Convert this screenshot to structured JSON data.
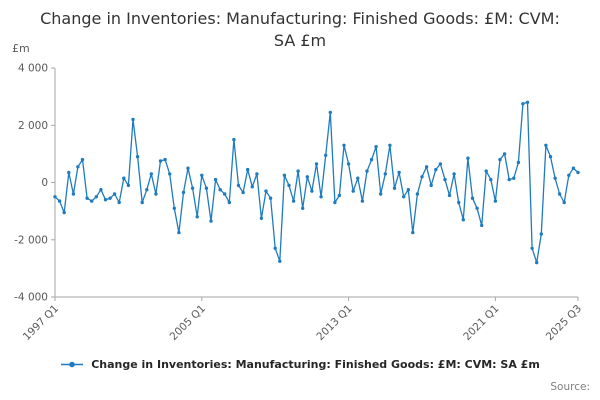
{
  "chart_data": {
    "type": "line",
    "title": "Change in Inventories: Manufacturing: Finished Goods: £M: CVM: SA £m",
    "ylabel": "£m",
    "xlabel": "",
    "ylim": [
      -4000,
      4000
    ],
    "grid": false,
    "legend_position": "bottom",
    "line_color": "#1f7bbf",
    "x_start": "1997 Q1",
    "x_end": "2025 Q3",
    "frequency": "quarterly",
    "yticks": [
      {
        "value": 4000,
        "label": "4 000"
      },
      {
        "value": 2000,
        "label": "2 000"
      },
      {
        "value": 0,
        "label": "0"
      },
      {
        "value": -2000,
        "label": "-2 000"
      },
      {
        "value": -4000,
        "label": "-4 000"
      }
    ],
    "xticks": [
      {
        "index": 0,
        "label": "1997 Q1"
      },
      {
        "index": 32,
        "label": "2005 Q1"
      },
      {
        "index": 64,
        "label": "2013 Q1"
      },
      {
        "index": 96,
        "label": "2021 Q1"
      },
      {
        "index": 114,
        "label": "2025 Q3"
      }
    ],
    "series": [
      {
        "name": "Change in Inventories: Manufacturing: Finished Goods: £M: CVM: SA £m",
        "values": [
          -500,
          -650,
          -1050,
          350,
          -400,
          550,
          800,
          -550,
          -650,
          -500,
          -250,
          -600,
          -550,
          -400,
          -700,
          150,
          -100,
          2200,
          900,
          -700,
          -250,
          300,
          -400,
          750,
          800,
          300,
          -900,
          -1750,
          -350,
          500,
          -200,
          -1200,
          250,
          -200,
          -1350,
          100,
          -250,
          -400,
          -700,
          1500,
          -100,
          -350,
          450,
          -150,
          300,
          -1250,
          -300,
          -550,
          -2300,
          -2750,
          250,
          -100,
          -650,
          400,
          -900,
          200,
          -300,
          650,
          -500,
          950,
          2450,
          -700,
          -450,
          1300,
          650,
          -300,
          150,
          -650,
          400,
          800,
          1250,
          -400,
          300,
          1300,
          -200,
          350,
          -500,
          -250,
          -1750,
          -400,
          200,
          550,
          -100,
          450,
          650,
          100,
          -450,
          300,
          -700,
          -1300,
          850,
          -550,
          -900,
          -1500,
          400,
          100,
          -650,
          800,
          1000,
          100,
          150,
          700,
          2750,
          2800,
          -2300,
          -2800,
          -1800,
          1300,
          900,
          150,
          -400,
          -700,
          250,
          500,
          350
        ]
      }
    ]
  },
  "footer": {
    "source_label": "Source:"
  }
}
